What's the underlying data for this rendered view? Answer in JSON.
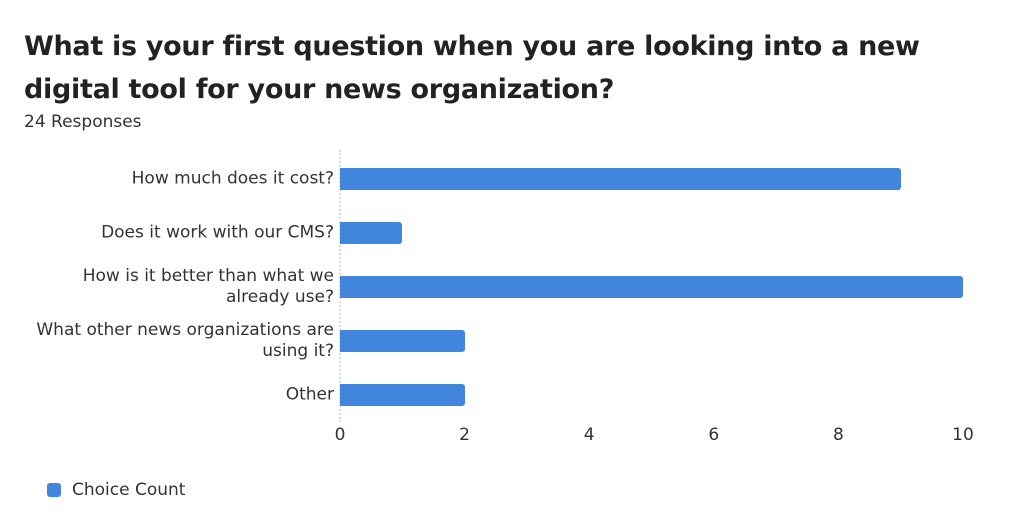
{
  "header": {
    "title": "What is your first question when you are looking into a new digital tool for your news organization?",
    "subtitle": "24 Responses"
  },
  "legend": {
    "label": "Choice Count",
    "color": "#4285dd"
  },
  "chart_data": {
    "type": "bar",
    "orientation": "horizontal",
    "title": "What is your first question when you are looking into a new digital tool for your news organization?",
    "subtitle": "24 Responses",
    "categories": [
      "How much does it cost?",
      "Does it work with our CMS?",
      "How is it better than what we already use?",
      "What other news organizations are using it?",
      "Other"
    ],
    "series": [
      {
        "name": "Choice Count",
        "values": [
          9,
          1,
          10,
          2,
          2
        ],
        "color": "#4285dd"
      }
    ],
    "xlabel": "",
    "ylabel": "",
    "xlim": [
      0,
      10
    ],
    "x_ticks": [
      "0",
      "2",
      "4",
      "6",
      "8",
      "10"
    ],
    "grid": false,
    "legend_position": "bottom-left"
  }
}
